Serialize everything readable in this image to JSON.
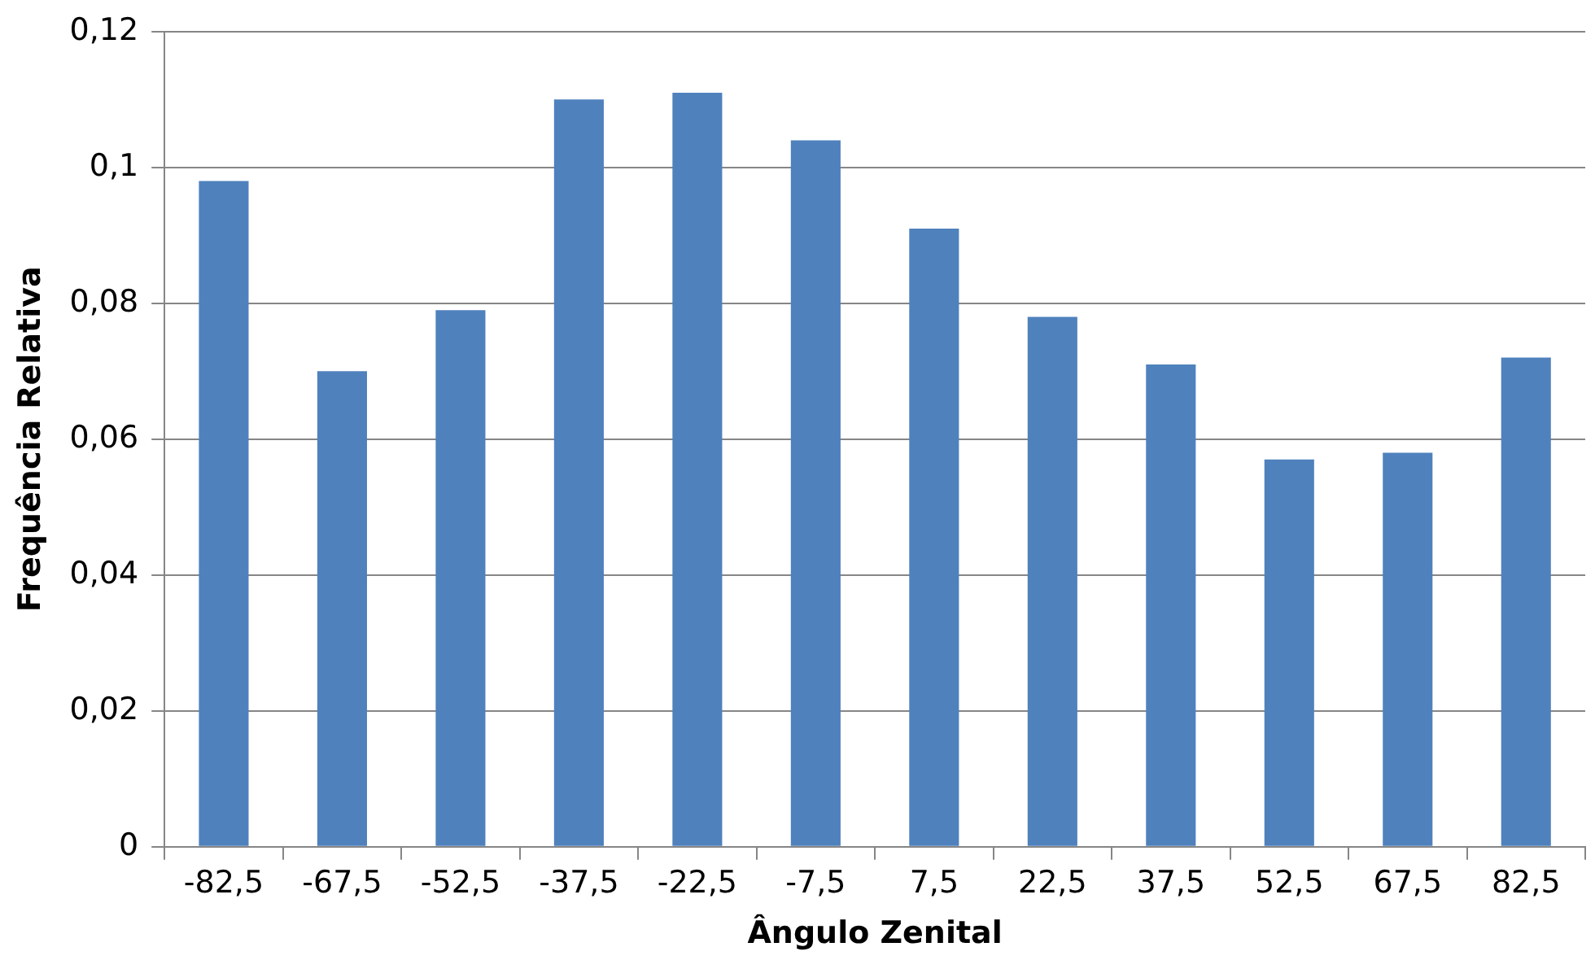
{
  "chart_data": {
    "type": "bar",
    "xlabel": "Ângulo Zenital",
    "ylabel": "Frequência Relativa",
    "categories": [
      "-82,5",
      "-67,5",
      "-52,5",
      "-37,5",
      "-22,5",
      "-7,5",
      "7,5",
      "22,5",
      "37,5",
      "52,5",
      "67,5",
      "82,5"
    ],
    "values": [
      0.098,
      0.07,
      0.079,
      0.11,
      0.111,
      0.104,
      0.091,
      0.078,
      0.071,
      0.057,
      0.058,
      0.072
    ],
    "color": "#4f81bd",
    "ylim": [
      0,
      0.12
    ],
    "yticks": [
      {
        "value": 0,
        "label": "0"
      },
      {
        "value": 0.02,
        "label": "0,02"
      },
      {
        "value": 0.04,
        "label": "0,04"
      },
      {
        "value": 0.06,
        "label": "0,06"
      },
      {
        "value": 0.08,
        "label": "0,08"
      },
      {
        "value": 0.1,
        "label": "0,1"
      },
      {
        "value": 0.12,
        "label": "0,12"
      }
    ],
    "grid": "y"
  }
}
